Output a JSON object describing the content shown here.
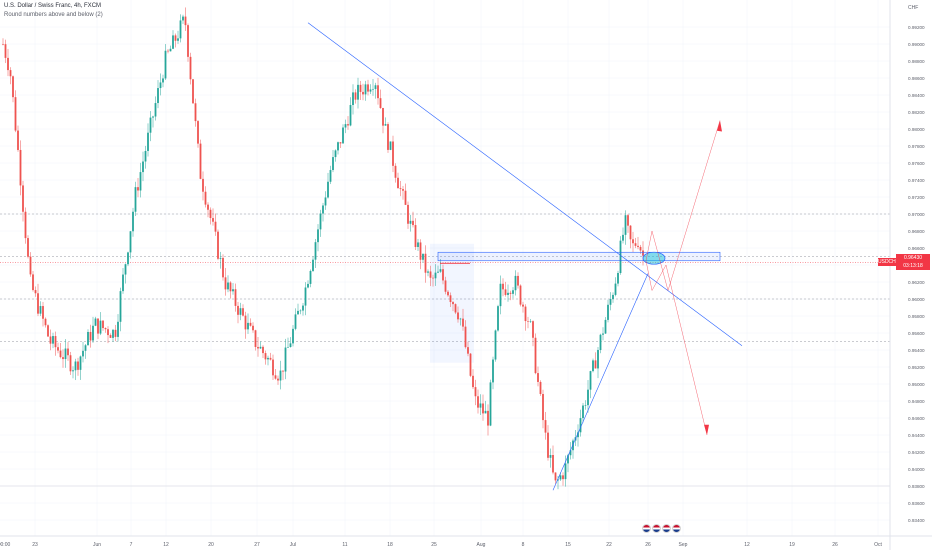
{
  "legend": {
    "title": "U.S. Dollar / Swiss Franc, 4h, FXCM",
    "indicator": "Round numbers above and below (2)"
  },
  "price_axis": {
    "currency": "CHF",
    "ticks": [
      "0.99200",
      "0.99000",
      "0.98800",
      "0.98600",
      "0.98400",
      "0.98200",
      "0.98000",
      "0.97800",
      "0.97600",
      "0.97400",
      "0.97200",
      "0.97000",
      "0.96800",
      "0.96600",
      "0.96400",
      "0.96200",
      "0.96000",
      "0.95800",
      "0.95600",
      "0.95400",
      "0.95200",
      "0.95000",
      "0.94800",
      "0.94600",
      "0.94400",
      "0.94200",
      "0.94000",
      "0.93800",
      "0.93600",
      "0.93400"
    ]
  },
  "time_axis": {
    "ticks": [
      "00:00",
      "23",
      "Jun",
      "7",
      "12",
      "20",
      "27",
      "Jul",
      "11",
      "18",
      "25",
      "Aug",
      "8",
      "15",
      "22",
      "26",
      "Sep",
      "12",
      "19",
      "26",
      "Oct"
    ]
  },
  "current_price": {
    "symbol": "USDCHF",
    "price": "0.96430",
    "countdown": "03:13:18"
  },
  "colors": {
    "up": "#26a69a",
    "down": "#ef5350",
    "blue_line": "#2962ff",
    "red_line": "#f23645",
    "dashed": "#9598a1",
    "grid": "#f0f3fa"
  },
  "events": {
    "icons": [
      "us-flag-icon",
      "us-flag-icon",
      "us-flag-icon",
      "us-flag-icon"
    ]
  },
  "chart_data": {
    "type": "candlestick",
    "symbol": "USDCHF",
    "timeframe": "4h",
    "ylim": [
      0.934,
      0.993
    ],
    "key_path": [
      {
        "label": "start",
        "value": 0.99
      },
      {
        "label": "Jun low",
        "value": 0.947
      },
      {
        "label": "Jun high",
        "value": 0.993
      },
      {
        "label": "Jul low",
        "value": 0.951
      },
      {
        "label": "Jul high",
        "value": 0.986
      },
      {
        "label": "Jul 22 low",
        "value": 0.958
      },
      {
        "label": "Aug low",
        "value": 0.937
      },
      {
        "label": "Aug 26 high",
        "value": 0.97
      },
      {
        "label": "last",
        "value": 0.9643
      }
    ],
    "horizontal_levels": [
      0.97,
      0.965,
      0.96,
      0.955,
      0.938
    ],
    "zone": [
      0.9646,
      0.9654
    ],
    "projections": [
      "up to 0.981",
      "down to 0.944"
    ]
  }
}
